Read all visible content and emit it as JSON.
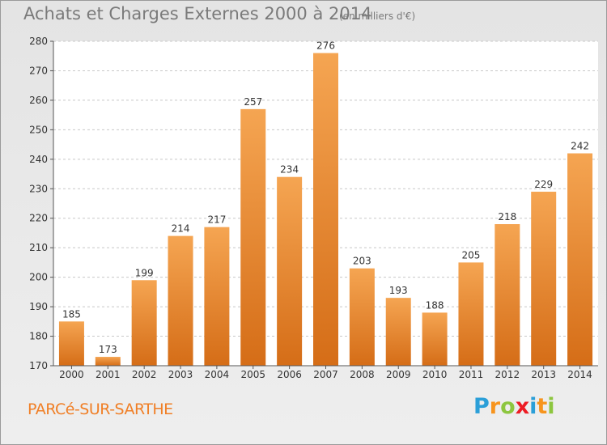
{
  "header": {
    "title": "Achats et Charges Externes 2000 à 2014",
    "unit": "(en milliers d'€)"
  },
  "footer": {
    "town": "PARCé-SUR-SARTHE",
    "logo_letters": [
      {
        "ch": "P",
        "color": "#2b9fd8"
      },
      {
        "ch": "r",
        "color": "#f7941d"
      },
      {
        "ch": "o",
        "color": "#8dc63f"
      },
      {
        "ch": "x",
        "color": "#ed1c24"
      },
      {
        "ch": "i",
        "color": "#2b9fd8"
      },
      {
        "ch": "t",
        "color": "#f7941d"
      },
      {
        "ch": "i",
        "color": "#8dc63f"
      }
    ]
  },
  "chart_data": {
    "type": "bar",
    "title": "Achats et Charges Externes 2000 à 2014",
    "subtitle": "(en milliers d'€)",
    "xlabel": "",
    "ylabel": "",
    "categories": [
      "2000",
      "2001",
      "2002",
      "2003",
      "2004",
      "2005",
      "2006",
      "2007",
      "2008",
      "2009",
      "2010",
      "2011",
      "2012",
      "2013",
      "2014"
    ],
    "values": [
      185,
      173,
      199,
      214,
      217,
      257,
      234,
      276,
      203,
      193,
      188,
      205,
      218,
      229,
      242
    ],
    "ylim": [
      170,
      280
    ],
    "yticks": [
      170,
      180,
      190,
      200,
      210,
      220,
      230,
      240,
      250,
      260,
      270,
      280
    ],
    "grid": "horizontal dashed",
    "bar_color_top": "#f5a552",
    "bar_color_bottom": "#d56d17"
  }
}
